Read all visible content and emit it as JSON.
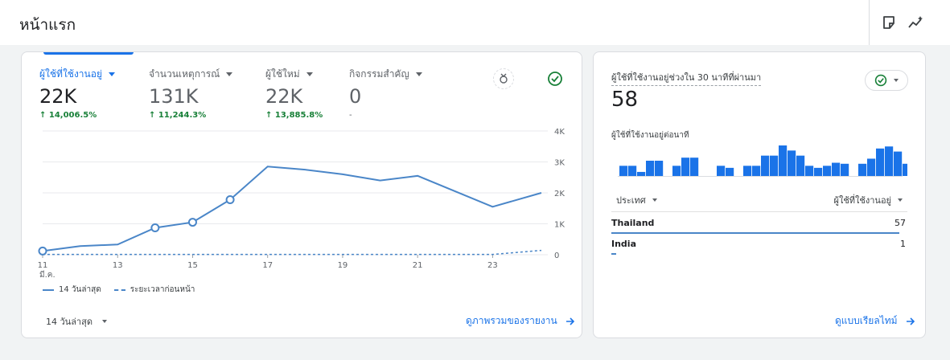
{
  "header": {
    "title": "หน้าแรก",
    "icons": [
      "note-icon",
      "insights-icon"
    ]
  },
  "main_card": {
    "metrics": [
      {
        "label": "ผู้ใช้ที่ใช้งานอยู่",
        "value": "22K",
        "change": "↑ 14,006.5%",
        "active": true
      },
      {
        "label": "จำนวนเหตุการณ์",
        "value": "131K",
        "change": "↑ 11,244.3%",
        "active": false
      },
      {
        "label": "ผู้ใช้ใหม่",
        "value": "22K",
        "change": "↑ 13,885.8%",
        "active": false
      },
      {
        "label": "กิจกรรมสำคัญ",
        "value": "0",
        "change": "-",
        "active": false
      }
    ],
    "legend": {
      "current": "14 วันล่าสุด",
      "previous": "ระยะเวลาก่อนหน้า"
    },
    "date_range": "14 วันล่าสุด",
    "link": "ดูภาพรวมของรายงาน"
  },
  "chart_data": {
    "type": "line",
    "x_ticks": [
      "11",
      "13",
      "15",
      "17",
      "19",
      "21",
      "23"
    ],
    "x_month": "มี.ค.",
    "y_ticks": [
      "4K",
      "3K",
      "2K",
      "1K",
      "0"
    ],
    "ylim": [
      0,
      4000
    ],
    "xlim": [
      11,
      24.3
    ],
    "series": [
      {
        "style": "solid",
        "x": [
          11,
          12,
          13,
          14,
          15,
          16,
          17,
          18,
          19,
          20,
          21,
          22,
          23,
          24.3
        ],
        "y": [
          120,
          280,
          330,
          870,
          1050,
          1780,
          2850,
          2750,
          2600,
          2400,
          2550,
          2050,
          1550,
          2000
        ],
        "markers": [
          11,
          14,
          15,
          16
        ]
      },
      {
        "style": "dashed",
        "x": [
          11,
          12,
          13,
          14,
          15,
          16,
          17,
          18,
          19,
          20,
          21,
          22,
          23,
          24.3
        ],
        "y": [
          10,
          10,
          10,
          10,
          10,
          10,
          10,
          10,
          10,
          10,
          10,
          10,
          10,
          140
        ]
      }
    ],
    "color": "#4a86c8",
    "grid": true
  },
  "realtime_card": {
    "title": "ผู้ใช้ที่ใช้งานอยู่ช่วงใน 30 นาทีที่ผ่านมา",
    "value": "58",
    "subtitle": "ผู้ใช้ที่ใช้งานอยู่ต่อนาที",
    "bars": [
      1,
      1,
      0.4,
      1.5,
      1.5,
      0,
      1,
      1.8,
      1.8,
      0,
      0,
      1,
      0.8,
      0,
      1,
      1,
      2,
      2,
      3,
      2.5,
      2,
      1,
      0.8,
      1,
      1.3,
      1.2,
      0,
      1.2,
      1.7,
      2.7,
      2.9,
      2.4,
      1.2,
      1.5,
      1,
      1,
      2.8,
      2,
      2,
      1.8,
      1.4,
      1.4,
      1.1,
      1.6,
      0.6,
      1.2,
      1.7
    ],
    "table_headers": {
      "dimension": "ประเทศ",
      "metric": "ผู้ใช้ที่ใช้งานอยู่"
    },
    "rows": [
      {
        "country": "Thailand",
        "value": "57",
        "share": 0.983
      },
      {
        "country": "India",
        "value": "1",
        "share": 0.017
      }
    ],
    "link": "ดูแบบเรียลไทม์"
  },
  "colors": {
    "accent": "#1a73e8",
    "positive": "#188038",
    "series": "#4a86c8",
    "bar": "#1a73e8"
  }
}
